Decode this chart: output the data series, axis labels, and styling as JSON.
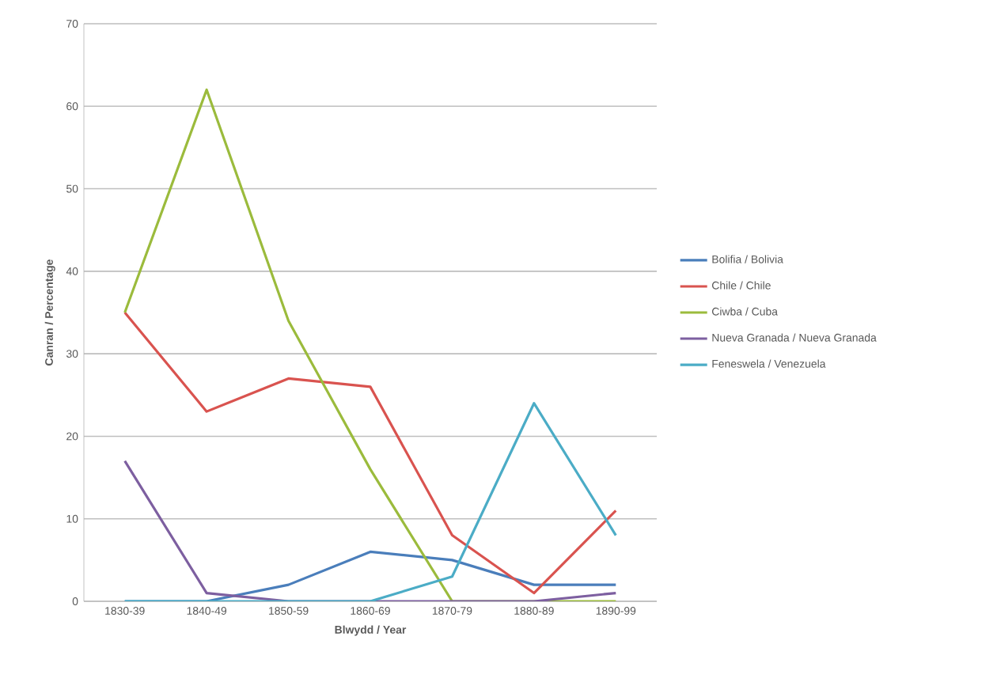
{
  "chart_data": {
    "type": "line",
    "xlabel": "Blwydd / Year",
    "ylabel": "Canran / Percentage",
    "categories": [
      "1830-39",
      "1840-49",
      "1850-59",
      "1860-69",
      "1870-79",
      "1880-89",
      "1890-99"
    ],
    "series": [
      {
        "name": "Bolifia / Bolivia",
        "color": "#4a7ebb",
        "values": [
          0,
          0,
          2,
          6,
          5,
          2,
          2
        ]
      },
      {
        "name": "Chile / Chile",
        "color": "#d9534f",
        "values": [
          35,
          23,
          27,
          26,
          8,
          1,
          11
        ]
      },
      {
        "name": "Ciwba / Cuba",
        "color": "#9bbb3c",
        "values": [
          35,
          62,
          34,
          16,
          0,
          0,
          0
        ]
      },
      {
        "name": "Nueva Granada / Nueva Granada",
        "color": "#7d5fa0",
        "values": [
          17,
          1,
          0,
          0,
          0,
          0,
          1
        ]
      },
      {
        "name": "Feneswela / Venezuela",
        "color": "#4bacc6",
        "values": [
          0,
          0,
          0,
          0,
          3,
          24,
          8
        ]
      }
    ],
    "ylim": [
      0,
      70
    ],
    "yticks": [
      0,
      10,
      20,
      30,
      40,
      50,
      60,
      70
    ],
    "grid": "y",
    "legend": "right",
    "marker": "none",
    "line_style": "solid"
  }
}
